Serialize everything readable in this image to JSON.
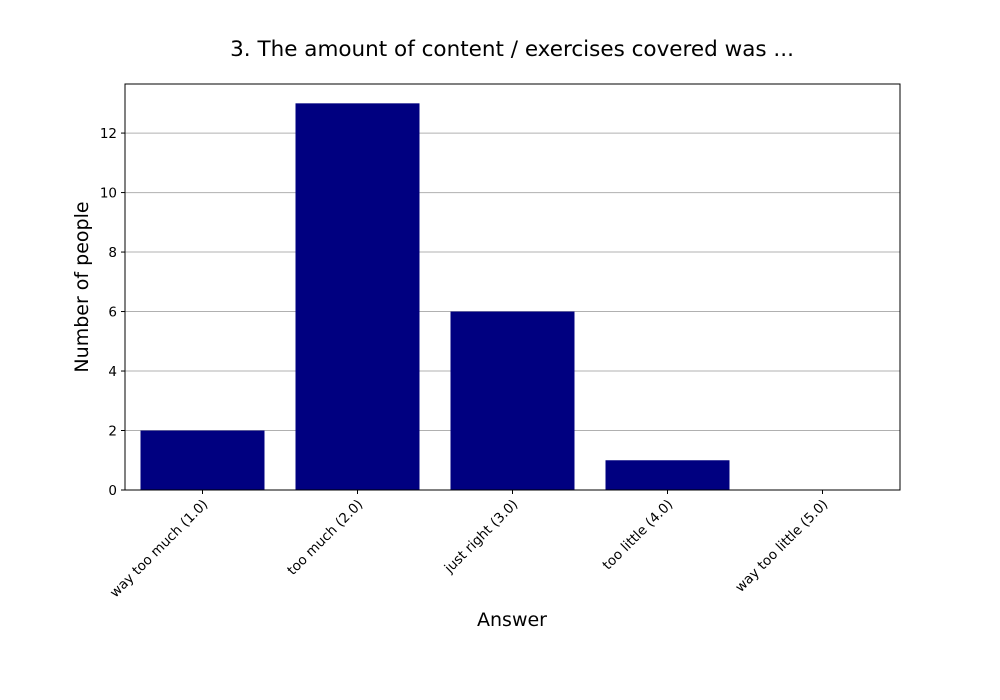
{
  "chart_data": {
    "type": "bar",
    "title": "3. The amount of content / exercises covered was ...",
    "xlabel": "Answer",
    "ylabel": "Number of people",
    "categories": [
      "way too much (1.0)",
      "too much (2.0)",
      "just right (3.0)",
      "too little (4.0)",
      "way too little (5.0)"
    ],
    "values": [
      2,
      13,
      6,
      1,
      0
    ],
    "ylim": [
      0,
      13.65
    ],
    "yticks": [
      0,
      2,
      4,
      6,
      8,
      10,
      12
    ],
    "grid": "horizontal",
    "bar_color": "#000080",
    "grid_color": "#b0b0b0",
    "axis_color": "#000000"
  }
}
